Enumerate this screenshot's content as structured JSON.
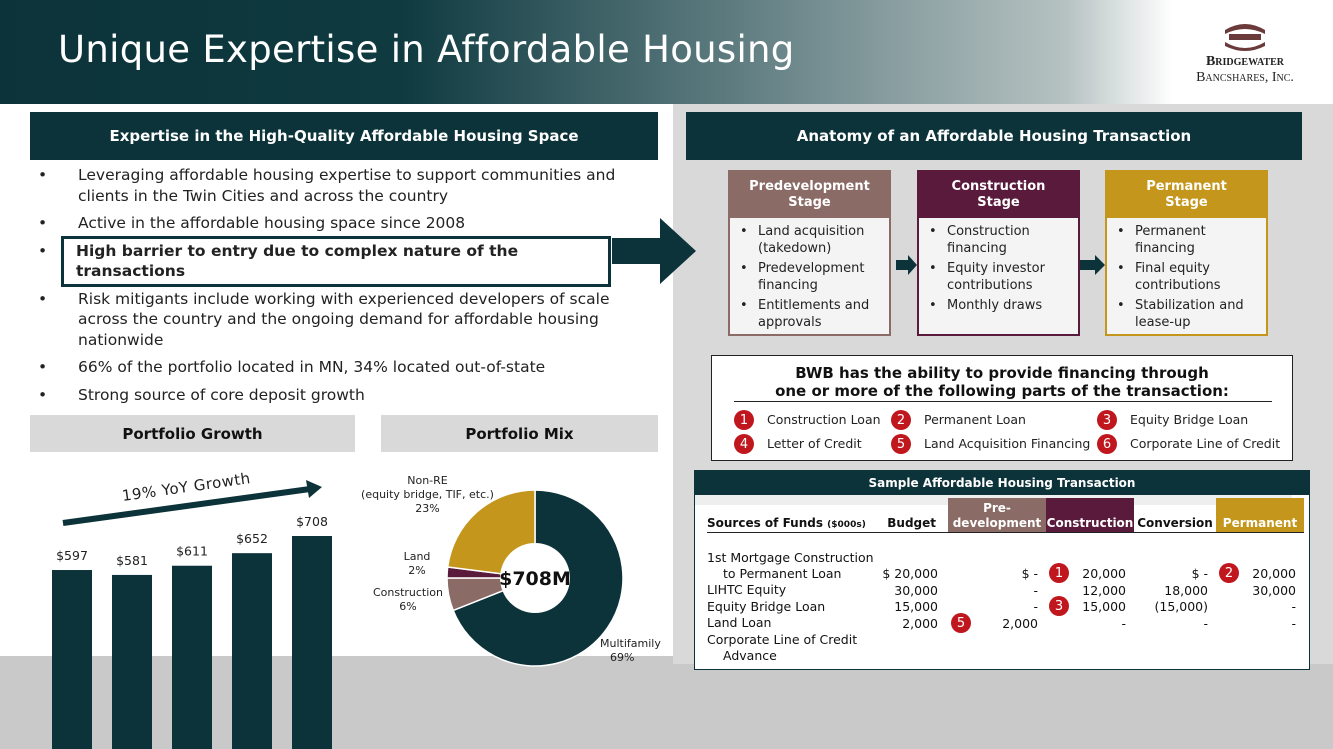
{
  "header": {
    "title": "Unique Expertise in Affordable Housing",
    "logo": [
      "Bridgewater",
      "Bancshares, Inc."
    ]
  },
  "expertise": {
    "heading": "Expertise in the High-Quality Affordable Housing Space",
    "bullets": [
      "Leveraging affordable housing expertise to support communities and clients in the Twin Cities and across the country",
      "Active in the affordable housing space since 2008",
      "High barrier to entry due to complex nature of the transactions",
      "Risk mitigants include working with experienced developers of scale across the country and the ongoing demand for affordable housing nationwide",
      "66% of the portfolio located in MN, 34% located out-of-state",
      "Strong source of core deposit growth"
    ],
    "highlighted": 2
  },
  "charts": [
    {
      "type": "bar",
      "title": "Portfolio Growth",
      "annotation": "19% YoY Growth",
      "values": [
        597,
        581,
        611,
        652,
        708
      ],
      "value_labels": [
        "$597",
        "$581",
        "$611",
        "$652",
        "$708"
      ],
      "color": "#0c3339"
    },
    {
      "type": "pie",
      "title": "Portfolio Mix",
      "center_label": "$708M",
      "categories": [
        "Multifamily",
        "Construction",
        "Land",
        "Non-RE\n(equity bridge, TIF, etc.)"
      ],
      "values": [
        69,
        6,
        2,
        23
      ],
      "value_labels": [
        "69%",
        "6%",
        "2%",
        "23%"
      ],
      "colors": [
        "#0c3339",
        "#8b6b65",
        "#5a1a3c",
        "#c4961c"
      ]
    }
  ],
  "anatomy": {
    "heading": "Anatomy of an Affordable Housing Transaction",
    "stages": [
      {
        "title": "Predevelopment\nStage",
        "color": "#8b6b65",
        "bullets": [
          "Land acquisition (takedown)",
          "Predevelopment financing",
          "Entitlements and approvals"
        ]
      },
      {
        "title": "Construction\nStage",
        "color": "#5a1a3c",
        "bullets": [
          "Construction financing",
          "Equity investor contributions",
          "Monthly draws"
        ]
      },
      {
        "title": "Permanent\nStage",
        "color": "#c4961c",
        "bullets": [
          "Permanent financing",
          "Final equity contributions",
          "Stabilization and lease-up"
        ]
      }
    ]
  },
  "financing": {
    "title": "BWB has the ability to provide financing through\none or more of the following parts of the transaction:",
    "options": [
      {
        "number": "1",
        "label": "Construction Loan"
      },
      {
        "number": "2",
        "label": "Permanent Loan"
      },
      {
        "number": "3",
        "label": "Equity Bridge Loan"
      },
      {
        "number": "4",
        "label": "Letter of Credit"
      },
      {
        "number": "5",
        "label": "Land Acquisition Financing"
      },
      {
        "number": "6",
        "label": "Corporate Line of Credit"
      }
    ]
  },
  "table": {
    "title": "Sample Affordable Housing Transaction",
    "header_label": "Sources of Funds",
    "header_unit": "($000s)",
    "columns": [
      "Budget",
      "Pre-\ndevelopment",
      "Construction",
      "Conversion",
      "Permanent"
    ],
    "column_colors": [
      null,
      "#8b6b65",
      "#5a1a3c",
      null,
      "#c4961c"
    ],
    "rows": [
      {
        "label": "1st Mortgage Construction\nto Permanent Loan",
        "cells": [
          "$ 20,000",
          "$ -",
          {
            "badge": "1",
            "text": "20,000"
          },
          "$ -",
          {
            "badge": "2",
            "text": "20,000"
          }
        ]
      },
      {
        "label": "LIHTC Equity",
        "cells": [
          "30,000",
          "-",
          "12,000",
          "18,000",
          "30,000"
        ]
      },
      {
        "label": "Equity Bridge Loan",
        "cells": [
          "15,000",
          "-",
          {
            "badge": "3",
            "text": "15,000"
          },
          "(15,000)",
          "-"
        ]
      },
      {
        "label": "Land Loan",
        "cells": [
          "2,000",
          {
            "badge": "5",
            "text": "2,000"
          },
          "-",
          "-",
          "-"
        ]
      },
      {
        "label": "Corporate Line of Credit\nAdvance",
        "cells": []
      }
    ]
  }
}
